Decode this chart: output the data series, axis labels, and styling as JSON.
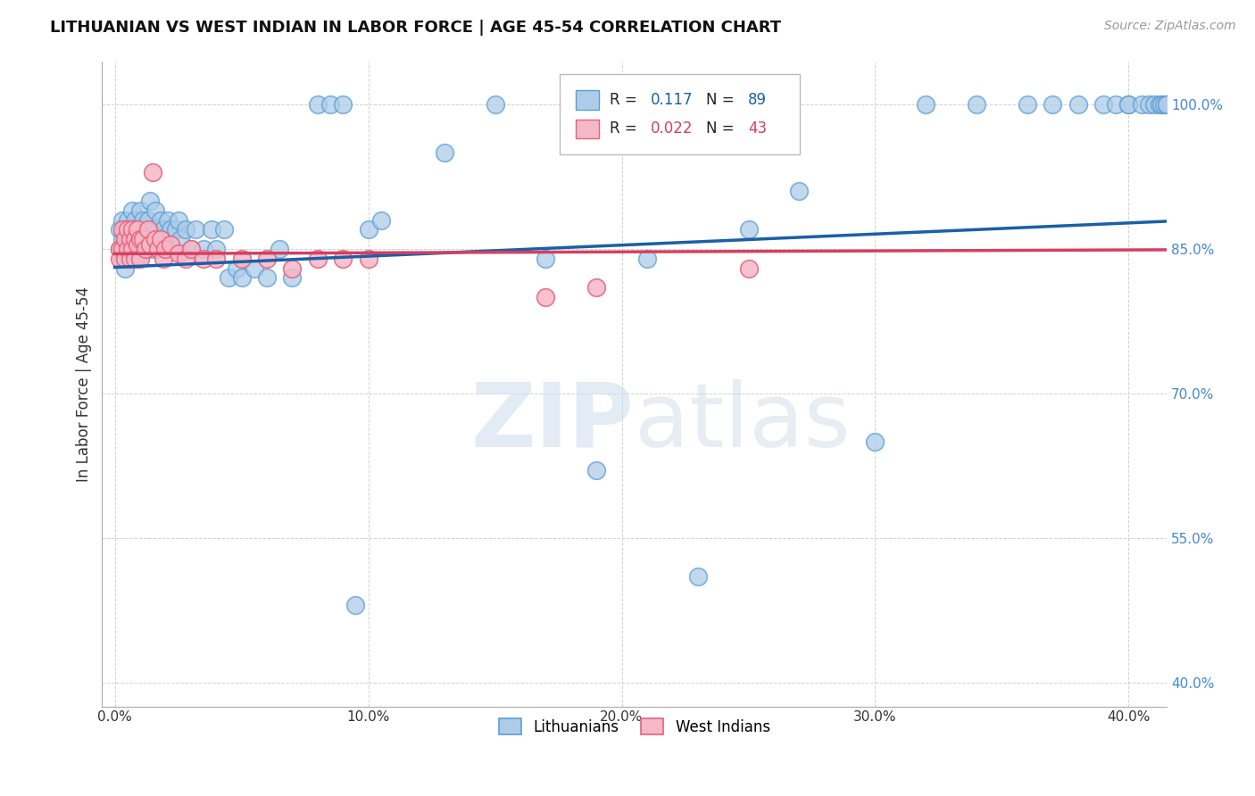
{
  "title": "LITHUANIAN VS WEST INDIAN IN LABOR FORCE | AGE 45-54 CORRELATION CHART",
  "source": "Source: ZipAtlas.com",
  "ylabel": "In Labor Force | Age 45-54",
  "xlim": [
    -0.005,
    0.415
  ],
  "ylim": [
    0.375,
    1.045
  ],
  "blue_R": "0.117",
  "blue_N": "89",
  "pink_R": "0.022",
  "pink_N": "43",
  "blue_color": "#aecce8",
  "blue_edge": "#5a9fd4",
  "pink_color": "#f5b8c8",
  "pink_edge": "#e8607a",
  "line_blue": "#1a5fa8",
  "line_pink": "#d44060",
  "legend_label_blue": "Lithuanians",
  "legend_label_pink": "West Indians",
  "watermark_zip": "ZIP",
  "watermark_atlas": "atlas",
  "blue_x": [
    0.002,
    0.002,
    0.003,
    0.003,
    0.003,
    0.004,
    0.004,
    0.004,
    0.005,
    0.005,
    0.005,
    0.006,
    0.006,
    0.007,
    0.007,
    0.007,
    0.008,
    0.008,
    0.009,
    0.009,
    0.01,
    0.01,
    0.01,
    0.011,
    0.011,
    0.012,
    0.012,
    0.013,
    0.014,
    0.015,
    0.015,
    0.016,
    0.017,
    0.018,
    0.018,
    0.019,
    0.02,
    0.021,
    0.022,
    0.023,
    0.024,
    0.025,
    0.026,
    0.028,
    0.03,
    0.032,
    0.035,
    0.038,
    0.04,
    0.043,
    0.045,
    0.048,
    0.05,
    0.055,
    0.06,
    0.065,
    0.07,
    0.08,
    0.085,
    0.09,
    0.095,
    0.1,
    0.105,
    0.13,
    0.15,
    0.17,
    0.19,
    0.21,
    0.23,
    0.25,
    0.27,
    0.3,
    0.32,
    0.34,
    0.36,
    0.37,
    0.38,
    0.39,
    0.395,
    0.4,
    0.4,
    0.405,
    0.408,
    0.41,
    0.412,
    0.413,
    0.414,
    0.415,
    0.415
  ],
  "blue_y": [
    0.87,
    0.85,
    0.88,
    0.86,
    0.84,
    0.87,
    0.85,
    0.83,
    0.88,
    0.86,
    0.84,
    0.87,
    0.85,
    0.89,
    0.87,
    0.85,
    0.88,
    0.85,
    0.87,
    0.84,
    0.89,
    0.87,
    0.85,
    0.88,
    0.86,
    0.87,
    0.85,
    0.88,
    0.9,
    0.87,
    0.85,
    0.89,
    0.87,
    0.88,
    0.86,
    0.87,
    0.85,
    0.88,
    0.87,
    0.85,
    0.87,
    0.88,
    0.86,
    0.87,
    0.85,
    0.87,
    0.85,
    0.87,
    0.85,
    0.87,
    0.82,
    0.83,
    0.82,
    0.83,
    0.82,
    0.85,
    0.82,
    1.0,
    1.0,
    1.0,
    0.48,
    0.87,
    0.88,
    0.95,
    1.0,
    0.84,
    0.62,
    0.84,
    0.51,
    0.87,
    0.91,
    0.65,
    1.0,
    1.0,
    1.0,
    1.0,
    1.0,
    1.0,
    1.0,
    1.0,
    1.0,
    1.0,
    1.0,
    1.0,
    1.0,
    1.0,
    1.0,
    1.0,
    1.0
  ],
  "pink_x": [
    0.002,
    0.002,
    0.003,
    0.003,
    0.004,
    0.004,
    0.005,
    0.005,
    0.006,
    0.006,
    0.007,
    0.007,
    0.008,
    0.008,
    0.009,
    0.009,
    0.01,
    0.01,
    0.011,
    0.012,
    0.013,
    0.014,
    0.015,
    0.016,
    0.017,
    0.018,
    0.019,
    0.02,
    0.022,
    0.025,
    0.028,
    0.03,
    0.035,
    0.04,
    0.05,
    0.06,
    0.07,
    0.08,
    0.09,
    0.1,
    0.17,
    0.19,
    0.25
  ],
  "pink_y": [
    0.85,
    0.84,
    0.87,
    0.85,
    0.86,
    0.84,
    0.87,
    0.85,
    0.86,
    0.84,
    0.87,
    0.85,
    0.86,
    0.84,
    0.87,
    0.855,
    0.86,
    0.84,
    0.86,
    0.85,
    0.87,
    0.855,
    0.93,
    0.86,
    0.85,
    0.86,
    0.84,
    0.85,
    0.855,
    0.845,
    0.84,
    0.85,
    0.84,
    0.84,
    0.84,
    0.84,
    0.83,
    0.84,
    0.84,
    0.84,
    0.8,
    0.81,
    0.83
  ]
}
